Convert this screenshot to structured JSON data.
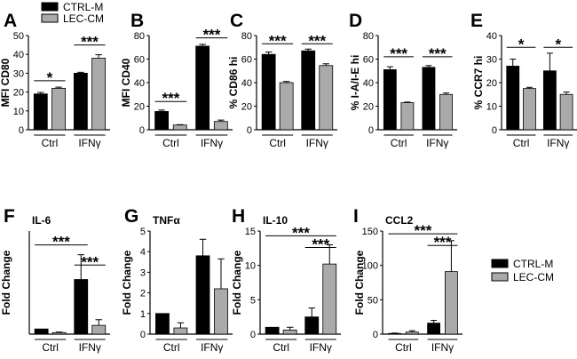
{
  "legend": {
    "series": [
      {
        "name": "CTRL-M",
        "color": "#000000"
      },
      {
        "name": "LEC-CM",
        "color": "#aaaaaa"
      }
    ]
  },
  "chart_data": [
    {
      "panel": "A",
      "type": "bar",
      "title": "",
      "ylabel": "MFI CD80",
      "ylim": [
        0,
        50
      ],
      "yticks": [
        "0",
        "10",
        "20",
        "30",
        "40",
        "50"
      ],
      "categories": [
        "Ctrl",
        "IFNγ"
      ],
      "series": [
        {
          "name": "CTRL-M",
          "values": [
            19,
            30
          ],
          "err": [
            0.8,
            0.5
          ]
        },
        {
          "name": "LEC-CM",
          "values": [
            22,
            38
          ],
          "err": [
            0.6,
            1.8
          ]
        }
      ],
      "annotations": [
        {
          "text": "*",
          "from": [
            0,
            0
          ],
          "to": [
            0,
            1
          ],
          "y": 26
        },
        {
          "text": "***",
          "from": [
            1,
            0
          ],
          "to": [
            1,
            1
          ],
          "y": 45
        }
      ]
    },
    {
      "panel": "B",
      "type": "bar",
      "title": "",
      "ylabel": "MFI CD40",
      "ylim": [
        0,
        80
      ],
      "yticks": [
        "0",
        "20",
        "40",
        "60",
        "80"
      ],
      "categories": [
        "Ctrl",
        "IFNγ"
      ],
      "series": [
        {
          "name": "CTRL-M",
          "values": [
            15.5,
            71
          ],
          "err": [
            1.2,
            1.5
          ]
        },
        {
          "name": "LEC-CM",
          "values": [
            4,
            7
          ],
          "err": [
            0.3,
            1.2
          ]
        }
      ],
      "annotations": [
        {
          "text": "***",
          "from": [
            0,
            0
          ],
          "to": [
            0,
            1
          ],
          "y": 24
        },
        {
          "text": "***",
          "from": [
            1,
            0
          ],
          "to": [
            1,
            1
          ],
          "y": 78
        }
      ]
    },
    {
      "panel": "C",
      "type": "bar",
      "title": "",
      "ylabel": "% CD86 hi",
      "ylim": [
        0,
        80
      ],
      "yticks": [
        "0",
        "20",
        "40",
        "60",
        "80"
      ],
      "categories": [
        "Ctrl",
        "IFNγ"
      ],
      "series": [
        {
          "name": "CTRL-M",
          "values": [
            64,
            67
          ],
          "err": [
            2,
            1.5
          ]
        },
        {
          "name": "LEC-CM",
          "values": [
            40,
            54.5
          ],
          "err": [
            1,
            1.5
          ]
        }
      ],
      "annotations": [
        {
          "text": "***",
          "from": [
            0,
            0
          ],
          "to": [
            0,
            1
          ],
          "y": 73
        },
        {
          "text": "***",
          "from": [
            1,
            0
          ],
          "to": [
            1,
            1
          ],
          "y": 73
        }
      ]
    },
    {
      "panel": "D",
      "type": "bar",
      "title": "",
      "ylabel": "% I-A/I-E hi",
      "ylim": [
        0,
        80
      ],
      "yticks": [
        "0",
        "20",
        "40",
        "60",
        "80"
      ],
      "categories": [
        "Ctrl",
        "IFNγ"
      ],
      "series": [
        {
          "name": "CTRL-M",
          "values": [
            51,
            53
          ],
          "err": [
            2.5,
            1.5
          ]
        },
        {
          "name": "LEC-CM",
          "values": [
            23,
            30
          ],
          "err": [
            0.5,
            1.2
          ]
        }
      ],
      "annotations": [
        {
          "text": "***",
          "from": [
            0,
            0
          ],
          "to": [
            0,
            1
          ],
          "y": 62
        },
        {
          "text": "***",
          "from": [
            1,
            0
          ],
          "to": [
            1,
            1
          ],
          "y": 62
        }
      ]
    },
    {
      "panel": "E",
      "type": "bar",
      "title": "",
      "ylabel": "% CCR7 hi",
      "ylim": [
        0,
        40
      ],
      "yticks": [
        "0",
        "10",
        "20",
        "30",
        "40"
      ],
      "categories": [
        "Ctrl",
        "IFNγ"
      ],
      "series": [
        {
          "name": "CTRL-M",
          "values": [
            27,
            25
          ],
          "err": [
            3,
            7.5
          ]
        },
        {
          "name": "LEC-CM",
          "values": [
            17.5,
            15
          ],
          "err": [
            0.5,
            1
          ]
        }
      ],
      "annotations": [
        {
          "text": "*",
          "from": [
            0,
            0
          ],
          "to": [
            0,
            1
          ],
          "y": 35
        },
        {
          "text": "*",
          "from": [
            1,
            0
          ],
          "to": [
            1,
            1
          ],
          "y": 35
        }
      ]
    },
    {
      "panel": "F",
      "type": "bar",
      "title": "IL-6",
      "ylabel": "Fold Change",
      "ylim": [
        0,
        20
      ],
      "yticks": [],
      "categories": [
        "Ctrl",
        "IFNγ"
      ],
      "series": [
        {
          "name": "CTRL-M",
          "values": [
            1,
            10.6
          ],
          "err": [
            0,
            4.8
          ]
        },
        {
          "name": "LEC-CM",
          "values": [
            0.3,
            1.7
          ],
          "err": [
            0.1,
            1.1
          ]
        }
      ],
      "annotations": [
        {
          "text": "***",
          "from": [
            0,
            0
          ],
          "to": [
            1,
            0
          ],
          "y": 17.3
        },
        {
          "text": "***",
          "from": [
            1,
            0
          ],
          "to": [
            1,
            1
          ],
          "y": 13.4
        }
      ]
    },
    {
      "panel": "G",
      "type": "bar",
      "title": "TNFα",
      "ylabel": "Fold Change",
      "ylim": [
        0,
        5
      ],
      "yticks": [
        "0",
        "1",
        "2",
        "3",
        "4",
        "5"
      ],
      "categories": [
        "Ctrl",
        "IFNγ"
      ],
      "series": [
        {
          "name": "CTRL-M",
          "values": [
            1,
            3.8
          ],
          "err": [
            0,
            0.8
          ]
        },
        {
          "name": "LEC-CM",
          "values": [
            0.3,
            2.2
          ],
          "err": [
            0.25,
            1.45
          ]
        }
      ],
      "annotations": []
    },
    {
      "panel": "H",
      "type": "bar",
      "title": "IL-10",
      "ylabel": "Fold Change",
      "ylim": [
        0,
        15
      ],
      "yticks": [
        "0",
        "5",
        "10",
        "15"
      ],
      "categories": [
        "Ctrl",
        "IFNγ"
      ],
      "series": [
        {
          "name": "CTRL-M",
          "values": [
            1,
            2.5
          ],
          "err": [
            0,
            1.3
          ]
        },
        {
          "name": "LEC-CM",
          "values": [
            0.6,
            10.2
          ],
          "err": [
            0.4,
            2.8
          ]
        }
      ],
      "annotations": [
        {
          "text": "***",
          "from": [
            0,
            0
          ],
          "to": [
            1,
            1
          ],
          "y": 14.3
        },
        {
          "text": "***",
          "from": [
            1,
            0
          ],
          "to": [
            1,
            1
          ],
          "y": 12.6
        }
      ]
    },
    {
      "panel": "I",
      "type": "bar",
      "title": "CCL2",
      "ylabel": "Fold Change",
      "ylim": [
        0,
        150
      ],
      "yticks": [
        "0",
        "50",
        "100",
        "150"
      ],
      "categories": [
        "Ctrl",
        "IFNγ"
      ],
      "series": [
        {
          "name": "CTRL-M",
          "values": [
            1,
            16
          ],
          "err": [
            0.5,
            4
          ]
        },
        {
          "name": "LEC-CM",
          "values": [
            3,
            91
          ],
          "err": [
            2,
            45
          ]
        }
      ],
      "annotations": [
        {
          "text": "***",
          "from": [
            0,
            0
          ],
          "to": [
            1,
            1
          ],
          "y": 146
        },
        {
          "text": "***",
          "from": [
            1,
            0
          ],
          "to": [
            1,
            1
          ],
          "y": 129
        }
      ]
    }
  ]
}
